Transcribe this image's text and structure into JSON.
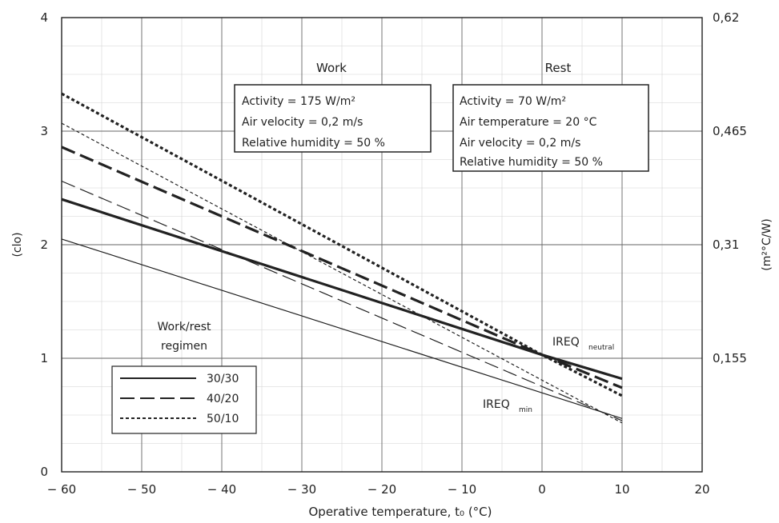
{
  "chart_data": {
    "type": "line",
    "xlabel": "Operative temperature, t₀ (°C)",
    "ylabel_left": "(clo)",
    "ylabel_right": "(m²°C/W)",
    "xlim": [
      -60,
      20
    ],
    "ylim": [
      0,
      4
    ],
    "x_ticks": [
      "-60",
      "-50",
      "-40",
      "-30",
      "-20",
      "-10",
      "0",
      "10",
      "20"
    ],
    "y_ticks": [
      "0",
      "1",
      "2",
      "3",
      "4"
    ],
    "y_ticks_right": [
      {
        "y": 1,
        "label": "0,155"
      },
      {
        "y": 2,
        "label": "0,31"
      },
      {
        "y": 3,
        "label": "0,465"
      },
      {
        "y": 4,
        "label": "0,62"
      }
    ],
    "grid": true,
    "section_labels": {
      "work": "Work",
      "rest": "Rest"
    },
    "work_box": [
      "Activity = 175 W/m²",
      "Air velocity = 0,2 m/s",
      "Relative humidity = 50 %"
    ],
    "rest_box": [
      "Activity = 70 W/m²",
      "Air temperature = 20 °C",
      "Air velocity = 0,2 m/s",
      "Relative humidity = 50 %"
    ],
    "legend_title": [
      "Work/rest",
      "regimen"
    ],
    "annotations": {
      "ireq_neutral": {
        "main": "IREQ",
        "sub": "neutral"
      },
      "ireq_min": {
        "main": "IREQ",
        "sub": "min"
      }
    },
    "series": [
      {
        "name": "30/30",
        "kind": "neutral",
        "style": "solid",
        "x": [
          -60,
          0,
          10
        ],
        "y": [
          2.4,
          1.03,
          0.82
        ]
      },
      {
        "name": "40/20",
        "kind": "neutral",
        "style": "longdash",
        "x": [
          -60,
          0,
          10
        ],
        "y": [
          2.86,
          1.03,
          0.74
        ]
      },
      {
        "name": "50/10",
        "kind": "neutral",
        "style": "shortdash",
        "x": [
          -60,
          0,
          10
        ],
        "y": [
          3.33,
          1.03,
          0.67
        ]
      },
      {
        "name": "30/30",
        "kind": "min",
        "style": "solid",
        "x": [
          -60,
          10
        ],
        "y": [
          2.05,
          0.47
        ]
      },
      {
        "name": "40/20",
        "kind": "min",
        "style": "longdash",
        "x": [
          -60,
          10
        ],
        "y": [
          2.56,
          0.45
        ]
      },
      {
        "name": "50/10",
        "kind": "min",
        "style": "shortdash",
        "x": [
          -60,
          10
        ],
        "y": [
          3.07,
          0.43
        ]
      }
    ]
  }
}
